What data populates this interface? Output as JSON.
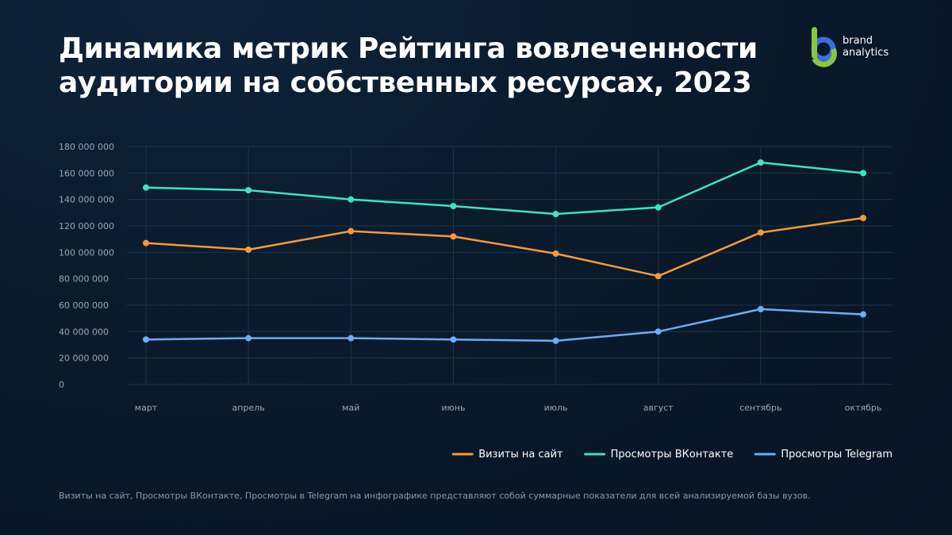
{
  "title_lines": [
    "Динамика метрик Рейтинга вовлеченности",
    "аудитории на собственных ресурсах, 2023"
  ],
  "logo": {
    "text_lines": [
      "brand",
      "analytics"
    ]
  },
  "colors": {
    "visits": "#f59a3a",
    "vk": "#3ee3c4",
    "telegram": "#6aaef5",
    "grid": "#1f3448",
    "logo_green": "#8bc53f",
    "logo_blue": "#3c6fd8"
  },
  "chart_data": {
    "type": "line",
    "title": "Динамика метрик Рейтинга вовлеченности аудитории на собственных ресурсах, 2023",
    "categories": [
      "март",
      "апрель",
      "май",
      "июнь",
      "июль",
      "август",
      "сентябрь",
      "октябрь"
    ],
    "ylim": [
      0,
      180000000
    ],
    "y_ticks": [
      0,
      20000000,
      40000000,
      60000000,
      80000000,
      100000000,
      120000000,
      140000000,
      160000000,
      180000000
    ],
    "y_tick_labels": [
      "0",
      "20 000 000",
      "40 000 000",
      "60 000 000",
      "80 000 000",
      "100 000 000",
      "120 000 000",
      "140 000 000",
      "160 000 000",
      "180 000 000"
    ],
    "grid": true,
    "legend_position": "bottom-right",
    "series": [
      {
        "key": "visits",
        "name": "Визиты на сайт",
        "values": [
          107000000,
          102000000,
          116000000,
          112000000,
          99000000,
          82000000,
          115000000,
          126000000
        ]
      },
      {
        "key": "vk",
        "name": "Просмотры ВКонтакте",
        "values": [
          149000000,
          147000000,
          140000000,
          135000000,
          129000000,
          134000000,
          168000000,
          160000000
        ]
      },
      {
        "key": "telegram",
        "name": "Просмотры Telegram",
        "values": [
          34000000,
          35000000,
          35000000,
          34000000,
          33000000,
          40000000,
          57000000,
          53000000
        ]
      }
    ]
  },
  "footnote": "Визиты на сайт, Просмотры ВКонтакте, Просмотры в Telegram на инфографике представляют собой суммарные показатели для всей анализируемой базы вузов."
}
